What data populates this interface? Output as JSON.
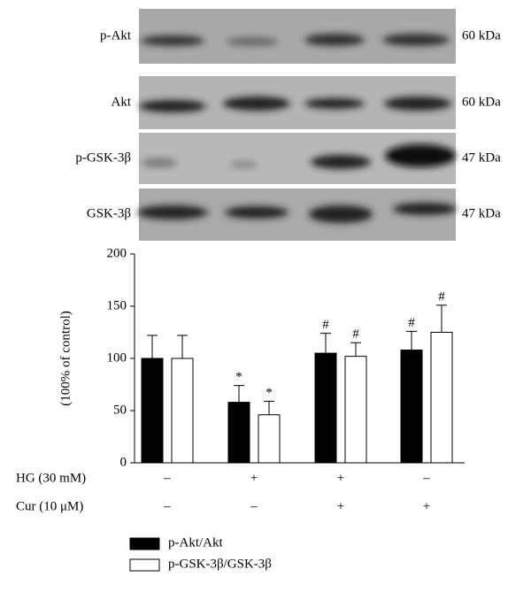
{
  "blots": [
    {
      "label": "p-Akt",
      "size": "60 kDa"
    },
    {
      "label": "Akt",
      "size": "60 kDa"
    },
    {
      "label": "p-GSK-3β",
      "size": "47 kDa"
    },
    {
      "label": "GSK-3β",
      "size": "47 kDa"
    }
  ],
  "chart_data": {
    "type": "bar",
    "ylabel": "(100% of control)",
    "ylim": [
      0,
      200
    ],
    "yticks": [
      0,
      50,
      100,
      150,
      200
    ],
    "series": [
      {
        "name": "p-Akt/Akt",
        "color": "#000000",
        "values": [
          100,
          58,
          105,
          108
        ],
        "errors": [
          22,
          16,
          19,
          18
        ],
        "annotations": [
          null,
          "*",
          "#",
          "#"
        ]
      },
      {
        "name": "p-GSK-3β/GSK-3β",
        "color": "#ffffff",
        "values": [
          100,
          46,
          102,
          125
        ],
        "errors": [
          22,
          13,
          13,
          26
        ],
        "annotations": [
          null,
          "*",
          "#",
          "#"
        ]
      }
    ],
    "treatments": [
      {
        "label": "HG (30 mM)",
        "values": [
          "–",
          "+",
          "+",
          "–"
        ]
      },
      {
        "label": "Cur (10 μM)",
        "values": [
          "–",
          "–",
          "+",
          "+"
        ]
      }
    ]
  }
}
